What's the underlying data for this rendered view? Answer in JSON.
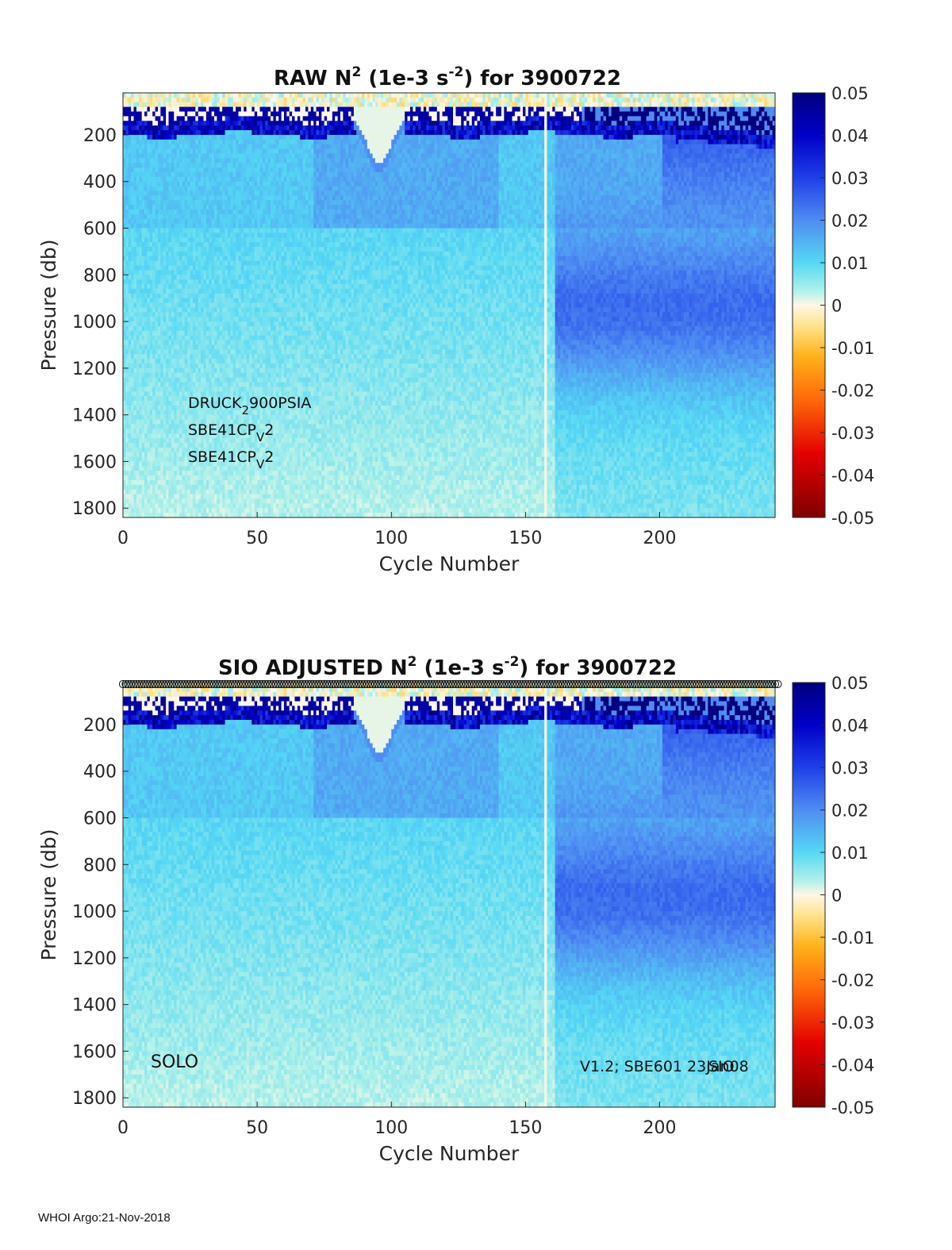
{
  "chart_data": [
    {
      "type": "heatmap",
      "title": "RAW N² (1e-3 s⁻²) for 3900722",
      "title_parts": {
        "pre": "RAW N",
        "sup1": "2",
        "mid": " (1e-3 s",
        "sup2": "-2",
        "post": ") for 3900722"
      },
      "xlabel": "Cycle Number",
      "ylabel": "Pressure (db)",
      "xlim": [
        0,
        243
      ],
      "ylim": [
        1840,
        20
      ],
      "y_reversed": true,
      "x_ticks": [
        "0",
        "50",
        "100",
        "150",
        "200"
      ],
      "y_ticks": [
        "200",
        "400",
        "600",
        "800",
        "1000",
        "1200",
        "1400",
        "1600",
        "1800"
      ],
      "colorbar": {
        "range": [
          -0.05,
          0.05
        ],
        "ticks": [
          "0.05",
          "0.04",
          "0.03",
          "0.02",
          "0.01",
          "0",
          "-0.01",
          "-0.02",
          "-0.03",
          "-0.04",
          "-0.05"
        ]
      },
      "annotations": [
        {
          "text": "DRUCK",
          "sub": "2",
          "rest": "900PSIA"
        },
        {
          "text": "SBE41CP",
          "sub": "V",
          "rest": "2"
        },
        {
          "text": "SBE41CP",
          "sub": "V",
          "rest": "2"
        }
      ]
    },
    {
      "type": "heatmap",
      "title": "SIO ADJUSTED N² (1e-3 s⁻²) for 3900722",
      "title_parts": {
        "pre": "SIO  ADJUSTED N",
        "sup1": "2",
        "mid": " (1e-3 s",
        "sup2": "-2",
        "post": ") for 3900722"
      },
      "xlabel": "Cycle Number",
      "ylabel": "Pressure (db)",
      "xlim": [
        0,
        243
      ],
      "ylim": [
        1840,
        20
      ],
      "y_reversed": true,
      "x_ticks": [
        "0",
        "50",
        "100",
        "150",
        "200"
      ],
      "y_ticks": [
        "200",
        "400",
        "600",
        "800",
        "1000",
        "1200",
        "1400",
        "1600",
        "1800"
      ],
      "colorbar": {
        "range": [
          -0.05,
          0.05
        ],
        "ticks": [
          "0.05",
          "0.04",
          "0.03",
          "0.02",
          "0.01",
          "0",
          "-0.01",
          "-0.02",
          "-0.03",
          "-0.04",
          "-0.05"
        ]
      },
      "annotations_left": "SOLO",
      "annotations_right": "V1.2; SBE601 23Jan08",
      "annotations_right_overlay": "SIO",
      "quality_flag_marker": "o"
    }
  ],
  "footer": "WHOI Argo:21-Nov-2018"
}
